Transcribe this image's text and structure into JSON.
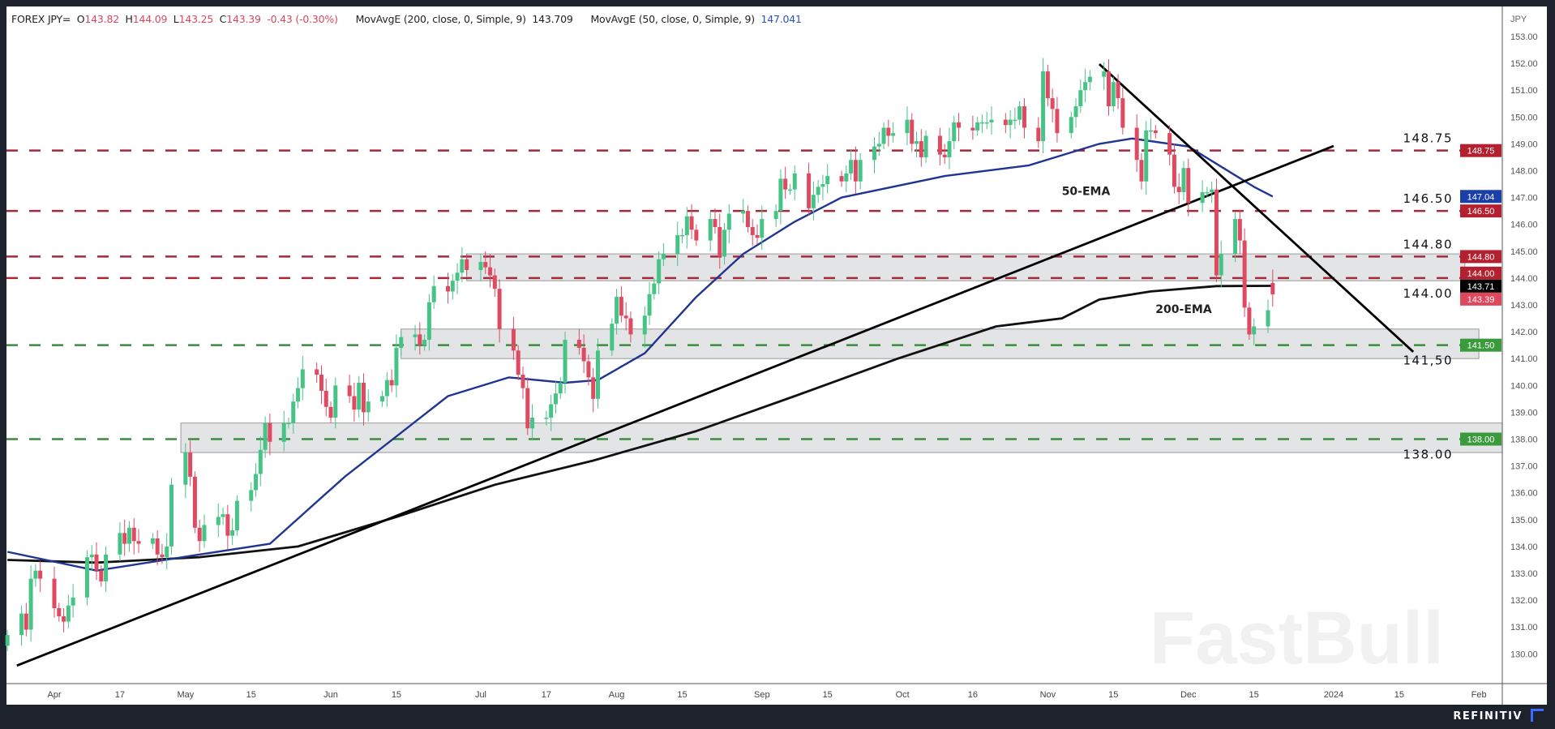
{
  "header": {
    "symbol": "FOREX JPY=",
    "open_label": "O",
    "open": "143.82",
    "high_label": "H",
    "high": "144.09",
    "low_label": "L",
    "low": "143.25",
    "close_label": "C",
    "close": "143.39",
    "change": "-0.43 (-0.30%)",
    "ma200_label": "MovAvgE (200, close, 0, Simple, 9)",
    "ma200_value": "143.709",
    "ma50_label": "MovAvgE (50, close, 0, Simple, 9)",
    "ma50_value": "147.041"
  },
  "footer": {
    "brand": "REFINITIV"
  },
  "colors": {
    "up": "#45c486",
    "down": "#df4a63",
    "resistance": "#a32a3c",
    "support": "#3c8c40",
    "ema50": "#1f3591",
    "ema200": "#111111",
    "zone": "#e3e4e6"
  },
  "chart_data": {
    "type": "candlestick",
    "title": "FOREX JPY=",
    "currency_label": "JPY",
    "ylim": [
      129.0,
      153.5
    ],
    "y_ticks": [
      130,
      131,
      132,
      133,
      134,
      135,
      136,
      137,
      138,
      139,
      140,
      141,
      142,
      143,
      144,
      145,
      146,
      147,
      148,
      149,
      150,
      151,
      152,
      153
    ],
    "x_ticks": [
      {
        "date": "2023-04-03",
        "label": "Apr"
      },
      {
        "date": "2023-04-17",
        "label": "17"
      },
      {
        "date": "2023-05-01",
        "label": "May"
      },
      {
        "date": "2023-05-15",
        "label": "15"
      },
      {
        "date": "2023-06-01",
        "label": "Jun"
      },
      {
        "date": "2023-06-15",
        "label": "15"
      },
      {
        "date": "2023-07-03",
        "label": "Jul"
      },
      {
        "date": "2023-07-17",
        "label": "17"
      },
      {
        "date": "2023-08-01",
        "label": "Aug"
      },
      {
        "date": "2023-08-15",
        "label": "15"
      },
      {
        "date": "2023-09-01",
        "label": "Sep"
      },
      {
        "date": "2023-09-15",
        "label": "15"
      },
      {
        "date": "2023-10-01",
        "label": "Oct"
      },
      {
        "date": "2023-10-16",
        "label": "16"
      },
      {
        "date": "2023-11-01",
        "label": "Nov"
      },
      {
        "date": "2023-11-15",
        "label": "15"
      },
      {
        "date": "2023-12-01",
        "label": "Dec"
      },
      {
        "date": "2023-12-15",
        "label": "15"
      },
      {
        "date": "2024-01-01",
        "label": "2024"
      },
      {
        "date": "2024-01-15",
        "label": "15"
      },
      {
        "date": "2024-02-01",
        "label": "Feb"
      }
    ],
    "candles_start_date": "2023-03-24",
    "closes": [
      130.7,
      131.5,
      130.9,
      132.8,
      133.1,
      132.8,
      131.7,
      131.4,
      131.2,
      131.8,
      132.1,
      133.6,
      133.7,
      133.1,
      132.7,
      133.7,
      134.5,
      134.1,
      134.7,
      134.2,
      134.1,
      134.3,
      133.7,
      133.6,
      134.0,
      136.3,
      137.5,
      136.6,
      134.7,
      134.2,
      134.8,
      135.1,
      135.2,
      134.4,
      134.6,
      135.7,
      136.1,
      136.7,
      137.6,
      138.6,
      137.9,
      138.6,
      138.6,
      139.4,
      139.9,
      140.6,
      140.4,
      139.8,
      139.2,
      138.8,
      140.0,
      139.6,
      139.1,
      140.1,
      139.0,
      139.4,
      139.6,
      140.2,
      140.0,
      141.4,
      141.8,
      141.9,
      141.5,
      141.7,
      143.1,
      143.7,
      143.5,
      143.9,
      144.2,
      144.7,
      144.3,
      144.6,
      144.4,
      144.1,
      143.6,
      142.1,
      141.3,
      140.4,
      139.9,
      138.4,
      138.8,
      138.8,
      139.3,
      139.7,
      140.1,
      141.7,
      141.4,
      140.9,
      140.3,
      139.5,
      141.3,
      142.3,
      143.3,
      142.6,
      142.5,
      141.9,
      142.6,
      143.4,
      143.8,
      144.7,
      144.9,
      145.6,
      145.6,
      146.3,
      145.8,
      145.4,
      146.2,
      145.9,
      144.8,
      145.8,
      146.4,
      146.5,
      145.9,
      145.6,
      145.5,
      146.2,
      146.5,
      147.7,
      147.3,
      147.3,
      147.9,
      146.6,
      147.1,
      147.4,
      147.5,
      147.8,
      147.6,
      147.9,
      148.4,
      147.6,
      148.4,
      148.9,
      149.0,
      149.6,
      149.3,
      149.4,
      149.9,
      149.0,
      149.1,
      148.5,
      149.3,
      148.6,
      148.5,
      149.1,
      149.8,
      149.6,
      149.5,
      149.8,
      149.8,
      149.8,
      149.9,
      149.7,
      149.9,
      149.9,
      150.4,
      149.6,
      149.1,
      151.7,
      150.7,
      150.3,
      149.4,
      150.0,
      150.4,
      151.0,
      151.3,
      151.5,
      151.7,
      150.4,
      151.3,
      150.7,
      149.6,
      148.4,
      147.6,
      149.5,
      149.5,
      149.4,
      148.6,
      147.4,
      147.2,
      148.1,
      146.8,
      147.2,
      147.2,
      147.3,
      144.1,
      144.9,
      146.2,
      145.4,
      142.9,
      141.9,
      142.2,
      142.8,
      143.39
    ],
    "last_open": 143.82,
    "ema50": {
      "name": "50-EMA",
      "points": [
        [
          "2023-03-24",
          133.8
        ],
        [
          "2023-04-12",
          133.1
        ],
        [
          "2023-05-04",
          133.7
        ],
        [
          "2023-05-19",
          134.1
        ],
        [
          "2023-06-04",
          136.6
        ],
        [
          "2023-06-26",
          139.6
        ],
        [
          "2023-07-09",
          140.3
        ],
        [
          "2023-07-21",
          140.1
        ],
        [
          "2023-07-28",
          140.2
        ],
        [
          "2023-08-07",
          141.2
        ],
        [
          "2023-08-18",
          143.3
        ],
        [
          "2023-08-28",
          144.9
        ],
        [
          "2023-09-08",
          146.1
        ],
        [
          "2023-09-18",
          147.0
        ],
        [
          "2023-10-10",
          147.8
        ],
        [
          "2023-10-28",
          148.2
        ],
        [
          "2023-11-12",
          149.0
        ],
        [
          "2023-11-19",
          149.2
        ],
        [
          "2023-12-01",
          148.9
        ],
        [
          "2023-12-15",
          147.4
        ],
        [
          "2023-12-19",
          147.04
        ]
      ]
    },
    "ema200": {
      "name": "200-EMA",
      "points": [
        [
          "2023-03-24",
          133.5
        ],
        [
          "2023-04-12",
          133.4
        ],
        [
          "2023-05-04",
          133.6
        ],
        [
          "2023-05-25",
          134.0
        ],
        [
          "2023-06-15",
          135.1
        ],
        [
          "2023-07-06",
          136.3
        ],
        [
          "2023-07-27",
          137.2
        ],
        [
          "2023-08-18",
          138.3
        ],
        [
          "2023-09-08",
          139.6
        ],
        [
          "2023-09-30",
          141.0
        ],
        [
          "2023-10-21",
          142.2
        ],
        [
          "2023-11-04",
          142.5
        ],
        [
          "2023-11-12",
          143.2
        ],
        [
          "2023-11-23",
          143.5
        ],
        [
          "2023-12-07",
          143.7
        ],
        [
          "2023-12-19",
          143.71
        ]
      ]
    },
    "levels": [
      {
        "price": 148.75,
        "label": "148.75",
        "badge": "148.75",
        "kind": "resistance",
        "label_pos": "above"
      },
      {
        "price": 146.5,
        "label": "146.50",
        "badge": "146.50",
        "kind": "resistance",
        "label_pos": "above"
      },
      {
        "price": 144.8,
        "label": "144.80",
        "badge": "144.80",
        "kind": "resistance",
        "label_pos": "above"
      },
      {
        "price": 144.0,
        "label": "144.00",
        "badge": "144.00",
        "kind": "resistance",
        "label_pos": "below"
      },
      {
        "price": 141.5,
        "label": "141,50",
        "badge": "141.50",
        "kind": "support",
        "label_pos": "below"
      },
      {
        "price": 138.0,
        "label": "138.00",
        "badge": "138.00",
        "kind": "support",
        "label_pos": "below"
      }
    ],
    "zones": [
      {
        "from": "2023-06-30",
        "to": "2024-01-29",
        "low": 143.9,
        "high": 144.9
      },
      {
        "from": "2023-06-16",
        "to": "2024-02-01",
        "low": 141.0,
        "high": 142.1
      },
      {
        "from": "2023-04-30",
        "to": "2024-02-06",
        "low": 137.5,
        "high": 138.6
      }
    ],
    "trendlines": [
      {
        "name": "rising-support",
        "from": [
          "2023-03-26",
          129.56
        ],
        "to": [
          "2024-01-01",
          148.92
        ]
      },
      {
        "name": "falling-resistance",
        "from": [
          "2023-11-12",
          151.97
        ],
        "to": [
          "2024-01-18",
          141.25
        ]
      }
    ],
    "annotations": [
      {
        "text": "50-EMA",
        "date": "2023-11-04",
        "price": 147.1
      },
      {
        "text": "200-EMA",
        "date": "2023-11-24",
        "price": 142.7
      }
    ],
    "value_badges": [
      {
        "value": "147.04",
        "price": 147.04,
        "kind": "ema50"
      },
      {
        "value": "143.71",
        "price": 143.71,
        "kind": "ema200"
      },
      {
        "value": "143.39",
        "price": 143.39,
        "kind": "last"
      }
    ],
    "watermark": "FastBull"
  }
}
